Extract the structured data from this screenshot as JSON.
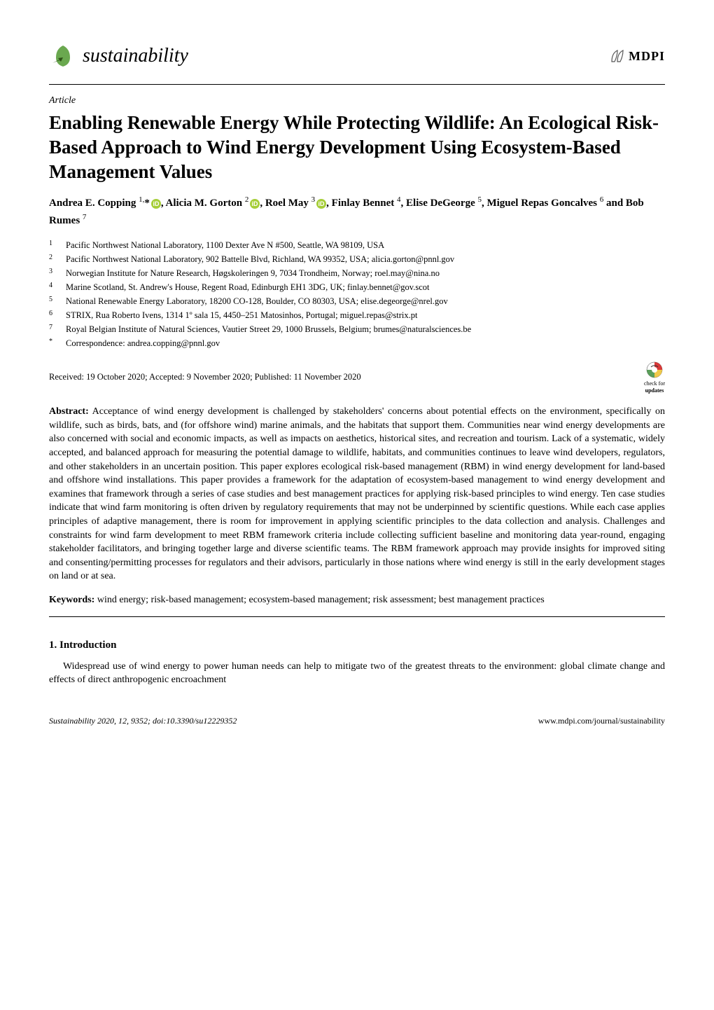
{
  "header": {
    "journal_name": "sustainability",
    "logo_color_leaf": "#6aa84f",
    "logo_color_arrow": "#2d5016",
    "publisher": "MDPI",
    "mdpi_color": "#555555"
  },
  "article": {
    "type": "Article",
    "title": "Enabling Renewable Energy While Protecting Wildlife: An Ecological Risk-Based Approach to Wind Energy Development Using Ecosystem-Based Management Values",
    "authors_html": "Andrea E. Copping <sup>1,</sup>*{ORCID}, Alicia M. Gorton <sup>2</sup>{ORCID}, Roel May <sup>3</sup>{ORCID}, Finlay Bennet <sup>4</sup>, Elise DeGeorge <sup>5</sup>, Miguel Repas Goncalves <sup>6</sup> and Bob Rumes <sup>7</sup>"
  },
  "affiliations": [
    {
      "num": "1",
      "text": "Pacific Northwest National Laboratory, 1100 Dexter Ave N #500, Seattle, WA 98109, USA"
    },
    {
      "num": "2",
      "text": "Pacific Northwest National Laboratory, 902 Battelle Blvd, Richland, WA 99352, USA; alicia.gorton@pnnl.gov"
    },
    {
      "num": "3",
      "text": "Norwegian Institute for Nature Research, Høgskoleringen 9, 7034 Trondheim, Norway; roel.may@nina.no"
    },
    {
      "num": "4",
      "text": "Marine Scotland, St. Andrew's House, Regent Road, Edinburgh EH1 3DG, UK; finlay.bennet@gov.scot"
    },
    {
      "num": "5",
      "text": "National Renewable Energy Laboratory, 18200 CO-128, Boulder, CO 80303, USA; elise.degeorge@nrel.gov"
    },
    {
      "num": "6",
      "text": "STRIX, Rua Roberto Ivens, 1314 1º sala 15, 4450–251 Matosinhos, Portugal; miguel.repas@strix.pt"
    },
    {
      "num": "7",
      "text": "Royal Belgian Institute of Natural Sciences, Vautier Street 29, 1000 Brussels, Belgium; brumes@naturalsciences.be"
    },
    {
      "num": "*",
      "text": "Correspondence: andrea.copping@pnnl.gov"
    }
  ],
  "dates": "Received: 19 October 2020; Accepted: 9 November 2020; Published: 11 November 2020",
  "check_updates": {
    "line1": "check for",
    "line2": "updates",
    "bg_color": "#d93838",
    "fg_color": "#ffffff"
  },
  "abstract": {
    "label": "Abstract:",
    "text": "Acceptance of wind energy development is challenged by stakeholders' concerns about potential effects on the environment, specifically on wildlife, such as birds, bats, and (for offshore wind) marine animals, and the habitats that support them. Communities near wind energy developments are also concerned with social and economic impacts, as well as impacts on aesthetics, historical sites, and recreation and tourism. Lack of a systematic, widely accepted, and balanced approach for measuring the potential damage to wildlife, habitats, and communities continues to leave wind developers, regulators, and other stakeholders in an uncertain position. This paper explores ecological risk-based management (RBM) in wind energy development for land-based and offshore wind installations. This paper provides a framework for the adaptation of ecosystem-based management to wind energy development and examines that framework through a series of case studies and best management practices for applying risk-based principles to wind energy. Ten case studies indicate that wind farm monitoring is often driven by regulatory requirements that may not be underpinned by scientific questions. While each case applies principles of adaptive management, there is room for improvement in applying scientific principles to the data collection and analysis. Challenges and constraints for wind farm development to meet RBM framework criteria include collecting sufficient baseline and monitoring data year-round, engaging stakeholder facilitators, and bringing together large and diverse scientific teams. The RBM framework approach may provide insights for improved siting and consenting/permitting processes for regulators and their advisors, particularly in those nations where wind energy is still in the early development stages on land or at sea."
  },
  "keywords": {
    "label": "Keywords:",
    "text": "wind energy; risk-based management; ecosystem-based management; risk assessment; best management practices"
  },
  "section": {
    "heading": "1. Introduction",
    "body": "Widespread use of wind energy to power human needs can help to mitigate two of the greatest threats to the environment: global climate change and effects of direct anthropogenic encroachment"
  },
  "footer": {
    "left": "Sustainability 2020, 12, 9352; doi:10.3390/su12229352",
    "right": "www.mdpi.com/journal/sustainability"
  },
  "orcid": {
    "bg": "#a6ce39",
    "fg": "#ffffff"
  }
}
